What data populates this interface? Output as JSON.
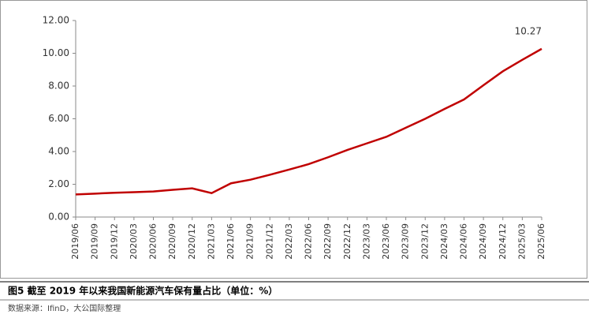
{
  "chart_data": {
    "type": "line",
    "categories": [
      "2019/06",
      "2019/09",
      "2019/12",
      "2020/03",
      "2020/06",
      "2020/09",
      "2020/12",
      "2021/03",
      "2021/06",
      "2021/09",
      "2021/12",
      "2022/03",
      "2022/06",
      "2022/09",
      "2022/12",
      "2023/03",
      "2023/06",
      "2023/09",
      "2023/12",
      "2024/03",
      "2024/06",
      "2024/09",
      "2024/12",
      "2025/03",
      "2025/06"
    ],
    "series": [
      {
        "color": "#c00000",
        "values": [
          1.38,
          1.43,
          1.48,
          1.52,
          1.56,
          1.66,
          1.75,
          1.46,
          2.06,
          2.28,
          2.58,
          2.9,
          3.23,
          3.65,
          4.1,
          4.5,
          4.9,
          5.45,
          6.0,
          6.6,
          7.18,
          8.05,
          8.9,
          9.6,
          10.27
        ],
        "value_labels": [
          null,
          null,
          null,
          null,
          null,
          null,
          null,
          null,
          null,
          null,
          null,
          null,
          null,
          null,
          null,
          null,
          null,
          null,
          null,
          null,
          null,
          null,
          null,
          null,
          "10.27"
        ]
      }
    ],
    "ylim": [
      0,
      12
    ],
    "yticks": [
      {
        "value": 0,
        "label": "0.00"
      },
      {
        "value": 2,
        "label": "2.00"
      },
      {
        "value": 4,
        "label": "4.00"
      },
      {
        "value": 6,
        "label": "6.00"
      },
      {
        "value": 8,
        "label": "8.00"
      },
      {
        "value": 10,
        "label": "10.00"
      },
      {
        "value": 12,
        "label": "12.00"
      }
    ],
    "caption": "图5   截至 2019 年以来我国新能源汽车保有量占比（单位：%）",
    "source": "数据来源：IfinD，大公国际整理"
  }
}
